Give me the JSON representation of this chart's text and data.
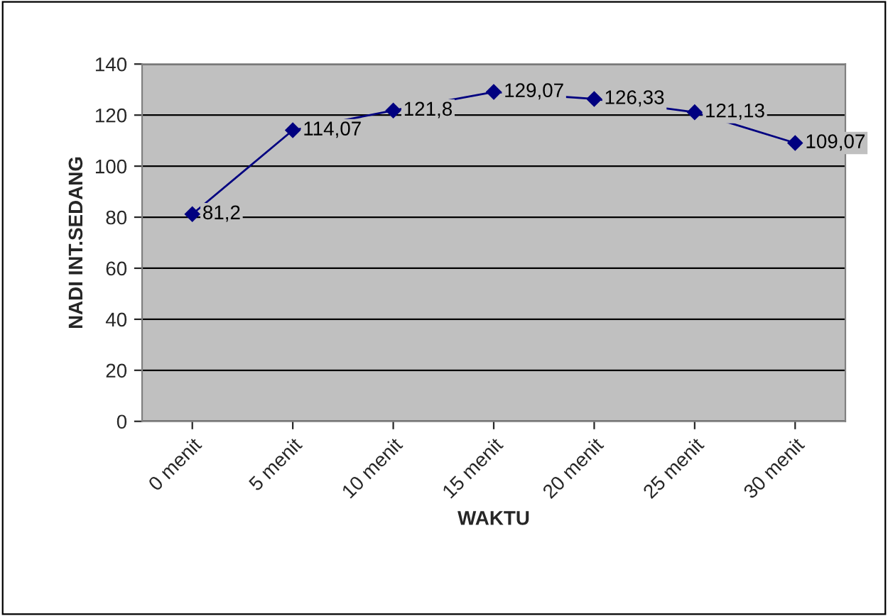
{
  "chart_data": {
    "type": "line",
    "xlabel": "WAKTU",
    "ylabel": "NADI INT.SEDANG",
    "categories": [
      "0 menit",
      "5 menit",
      "10 menit",
      "15 menit",
      "20 menit",
      "25 menit",
      "30 menit"
    ],
    "series": [
      {
        "color": "#000080",
        "values": [
          81.2,
          114.07,
          121.8,
          129.07,
          126.33,
          121.13,
          109.07
        ],
        "value_labels": [
          "81,2",
          "114,07",
          "121,8",
          "129,07",
          "126,33",
          "121,13",
          "109,07"
        ]
      }
    ],
    "ylim": [
      0,
      140
    ],
    "yticks": [
      0,
      20,
      40,
      60,
      80,
      100,
      120,
      140
    ],
    "grid": "y",
    "marker": "diamond",
    "line_style": "solid",
    "legend": false
  }
}
